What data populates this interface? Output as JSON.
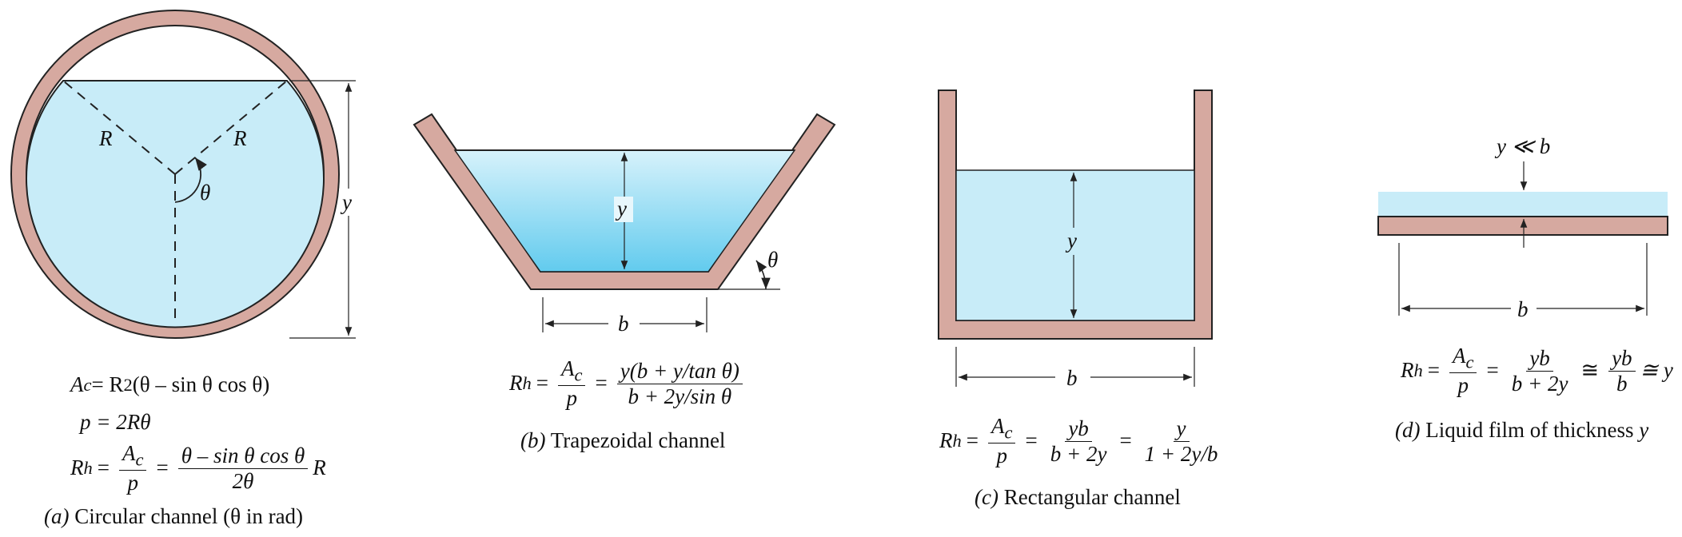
{
  "labels": {
    "R": "R",
    "theta": "θ",
    "y": "y",
    "b": "b",
    "y_ll_b": "y ≪ b"
  },
  "circular": {
    "ac_lhs": "A",
    "ac_sub": "c",
    "ac_rhs_pre": " = R",
    "ac_sup": "2",
    "ac_rhs_post": "(θ – sin θ cos θ)",
    "p_eq": "p = 2Rθ",
    "rh": "R",
    "rh_sub": "h",
    "frac1_num": "A",
    "frac1_num_sub": "c",
    "frac1_den": "p",
    "frac2_num": "θ – sin θ cos θ",
    "frac2_den": "2θ",
    "tail": "R",
    "caption_letter": "(a)",
    "caption_text": " Circular channel (θ in rad)"
  },
  "trapezoidal": {
    "rh": "R",
    "rh_sub": "h",
    "frac1_num": "A",
    "frac1_num_sub": "c",
    "frac1_den": "p",
    "frac2_num": "y(b + y/tan θ)",
    "frac2_den": "b + 2y/sin θ",
    "caption_letter": "(b)",
    "caption_text": " Trapezoidal channel"
  },
  "rectangular": {
    "rh": "R",
    "rh_sub": "h",
    "frac1_num": "A",
    "frac1_num_sub": "c",
    "frac1_den": "p",
    "frac2_num": "yb",
    "frac2_den": "b + 2y",
    "frac3_num": "y",
    "frac3_den": "1 + 2y/b",
    "caption_letter": "(c)",
    "caption_text": " Rectangular channel"
  },
  "film": {
    "rh": "R",
    "rh_sub": "h",
    "frac1_num": "A",
    "frac1_num_sub": "c",
    "frac1_den": "p",
    "frac2_num": "yb",
    "frac2_den": "b + 2y",
    "frac3_num": "yb",
    "frac3_den": "b",
    "tail": "≅ y",
    "caption_letter": "(d)",
    "caption_text": " Liquid film of thickness ",
    "caption_var": "y"
  },
  "colors": {
    "water": "#c8ecf8",
    "wall": "#d6a9a0",
    "stroke": "#222222"
  }
}
